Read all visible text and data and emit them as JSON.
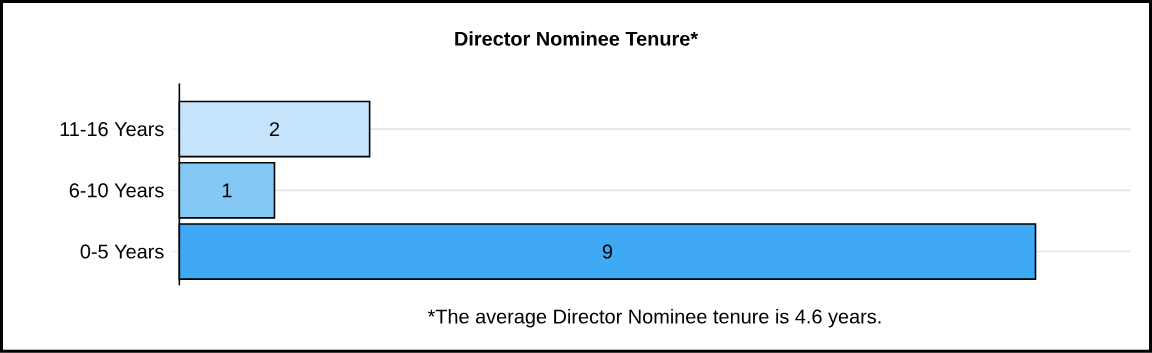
{
  "chart_data": {
    "type": "bar",
    "orientation": "horizontal",
    "title": "Director Nominee Tenure*",
    "categories": [
      "11-16 Years",
      "6-10 Years",
      "0-5 Years"
    ],
    "values": [
      2,
      1,
      9
    ],
    "colors": [
      "#c5e3fb",
      "#84c8f6",
      "#3fa9f5"
    ],
    "tick_labels": "y",
    "grid": true,
    "data_labels": true,
    "annotations": [
      "*The average Director Nominee tenure is 4.6 years."
    ]
  }
}
